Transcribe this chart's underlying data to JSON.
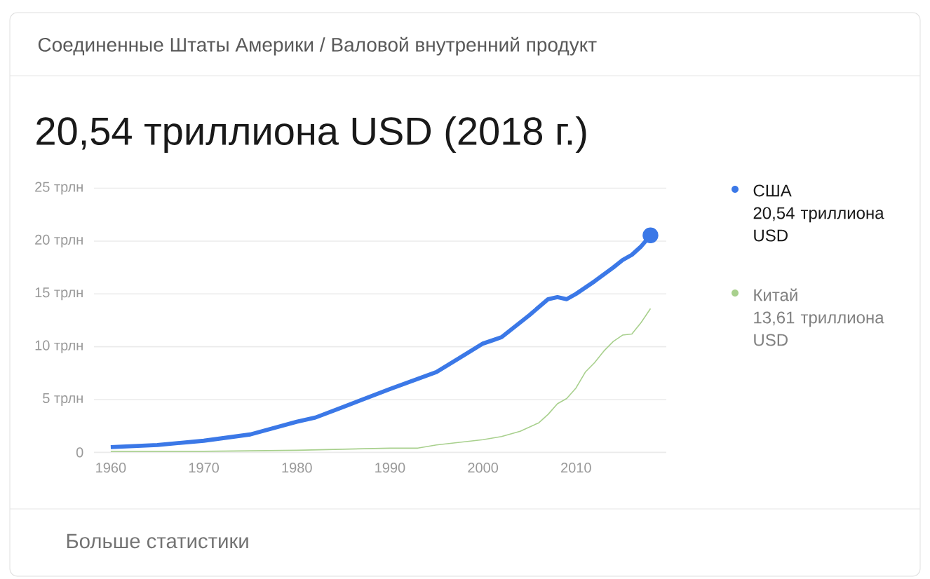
{
  "chart_data": {
    "type": "line",
    "subtitle": "Соединенные Штаты Америки / Валовой внутренний продукт",
    "title": "20,54 триллиона USD (2018 г.)",
    "xlim": [
      1958.2,
      2019.7
    ],
    "xticks": [
      1960,
      1970,
      1980,
      1990,
      2000,
      2010
    ],
    "ylim": [
      0,
      25
    ],
    "yticks": [
      {
        "value": 0,
        "label": "0"
      },
      {
        "value": 5,
        "label": "5 трлн"
      },
      {
        "value": 10,
        "label": "10 трлн"
      },
      {
        "value": 15,
        "label": "15 трлн"
      },
      {
        "value": 20,
        "label": "20 трлн"
      },
      {
        "value": 25,
        "label": "25 трлн"
      }
    ],
    "grid": "y",
    "legend": "right",
    "series": [
      {
        "name": "США",
        "color": "#3b78e7",
        "x": [
          1960,
          1965,
          1970,
          1975,
          1980,
          1982,
          1985,
          1990,
          1995,
          2000,
          2001,
          2002,
          2005,
          2007,
          2008,
          2009,
          2010,
          2012,
          2014,
          2015,
          2016,
          2017,
          2018
        ],
        "values": [
          0.5,
          0.7,
          1.1,
          1.7,
          2.9,
          3.3,
          4.3,
          6.0,
          7.6,
          10.3,
          10.6,
          10.9,
          13.0,
          14.5,
          14.7,
          14.5,
          15.0,
          16.2,
          17.5,
          18.2,
          18.7,
          19.5,
          20.54
        ]
      },
      {
        "color": "#3b78e7",
        "type": "scatter",
        "marker": "circle",
        "x": [
          2018
        ],
        "values": [
          20.54
        ]
      },
      {
        "name": "Китай",
        "color": "#a8d08d",
        "x": [
          1960,
          1970,
          1980,
          1985,
          1990,
          1993,
          1995,
          2000,
          2002,
          2004,
          2006,
          2007,
          2008,
          2009,
          2010,
          2011,
          2012,
          2013,
          2014,
          2015,
          2016,
          2017,
          2018
        ],
        "values": [
          0.1,
          0.1,
          0.2,
          0.3,
          0.4,
          0.4,
          0.7,
          1.2,
          1.5,
          2.0,
          2.8,
          3.6,
          4.6,
          5.1,
          6.1,
          7.6,
          8.5,
          9.6,
          10.5,
          11.1,
          11.2,
          12.3,
          13.61
        ]
      }
    ],
    "annotations": [
      "20,54 триллиона USD",
      "13,61 триллиона USD",
      "Больше статистики"
    ]
  }
}
